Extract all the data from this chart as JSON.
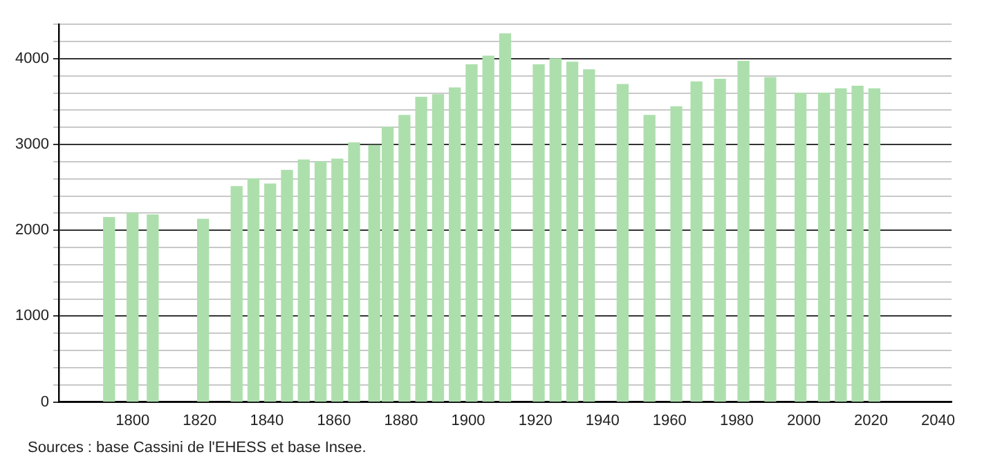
{
  "chart_data": {
    "type": "bar",
    "color": "#addfad",
    "x": [
      1793,
      1800,
      1806,
      1821,
      1831,
      1836,
      1841,
      1846,
      1851,
      1856,
      1861,
      1866,
      1872,
      1876,
      1881,
      1886,
      1891,
      1896,
      1901,
      1906,
      1911,
      1921,
      1926,
      1931,
      1936,
      1946,
      1954,
      1962,
      1968,
      1975,
      1982,
      1990,
      1999,
      2006,
      2011,
      2016,
      2021
    ],
    "values": [
      2150,
      2200,
      2180,
      2130,
      2510,
      2600,
      2540,
      2700,
      2820,
      2800,
      2830,
      3020,
      2990,
      3200,
      3340,
      3550,
      3580,
      3660,
      3930,
      4030,
      4290,
      3930,
      4000,
      3960,
      3870,
      3700,
      3340,
      3440,
      3730,
      3760,
      3970,
      3780,
      3600,
      3600,
      3650,
      3680,
      3650
    ],
    "xlim": [
      1778,
      2044
    ],
    "xticks": [
      1800,
      1820,
      1840,
      1860,
      1880,
      1900,
      1920,
      1940,
      1960,
      1980,
      2000,
      2020,
      2040
    ],
    "ylim": [
      0,
      4400
    ],
    "yticks": [
      0,
      {
        "value": 200,
        "label": null
      },
      {
        "value": 400,
        "label": null
      },
      {
        "value": 600,
        "label": null
      },
      {
        "value": 800,
        "label": null
      },
      1000,
      {
        "value": 1200,
        "label": null
      },
      {
        "value": 1400,
        "label": null
      },
      {
        "value": 1600,
        "label": null
      },
      {
        "value": 1800,
        "label": null
      },
      2000,
      {
        "value": 2200,
        "label": null
      },
      {
        "value": 2400,
        "label": null
      },
      {
        "value": 2600,
        "label": null
      },
      {
        "value": 2800,
        "label": null
      },
      3000,
      {
        "value": 3200,
        "label": null
      },
      {
        "value": 3400,
        "label": null
      },
      {
        "value": 3600,
        "label": null
      },
      {
        "value": 3800,
        "label": null
      },
      4000,
      {
        "value": 4200,
        "label": null
      },
      {
        "value": 4400,
        "label": null
      }
    ],
    "grid": "y",
    "legend": false,
    "annotations": [
      "Sources : base Cassini de l'EHESS et base Insee."
    ]
  }
}
